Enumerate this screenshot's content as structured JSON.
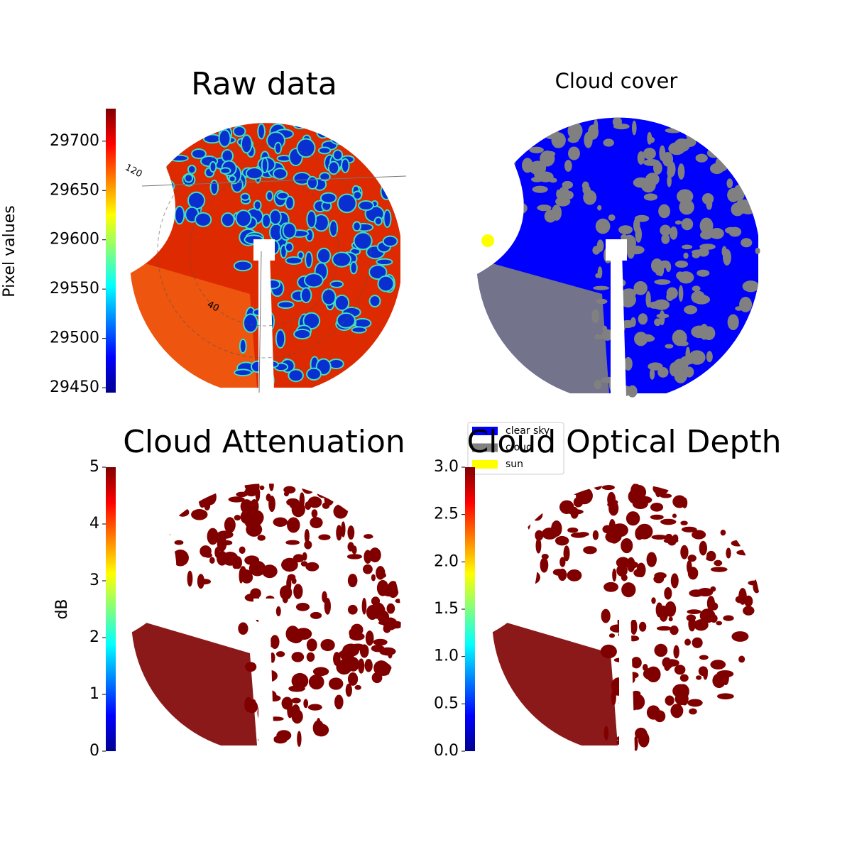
{
  "chart_data": [
    {
      "type": "image",
      "title": "Raw data",
      "colorbar_label": "Pixel values",
      "cmap": "jet",
      "ylim": [
        29445,
        29733
      ],
      "yticks": [
        29450,
        29500,
        29550,
        29600,
        29650,
        29700
      ],
      "annotations": [
        "120",
        "40"
      ]
    },
    {
      "type": "classes",
      "title": "Cloud cover",
      "series": [
        {
          "name": "clear sky",
          "color": "#0000ff"
        },
        {
          "name": "cloud",
          "color": "#808080"
        },
        {
          "name": "sun",
          "color": "#ffff00"
        }
      ]
    },
    {
      "type": "image",
      "title": "Cloud Attenuation",
      "colorbar_label": "dB",
      "cmap": "jet",
      "ylim": [
        0,
        5
      ],
      "yticks": [
        0,
        1,
        2,
        3,
        4,
        5
      ]
    },
    {
      "type": "image",
      "title": "Cloud Optical Depth",
      "cmap": "jet",
      "ylim": [
        0,
        3
      ],
      "yticks": [
        {
          "value": 0,
          "label": "0.0"
        },
        0.5,
        {
          "value": 1,
          "label": "1.0"
        },
        1.5,
        {
          "value": 2,
          "label": "2.0"
        },
        2.5,
        {
          "value": 3,
          "label": "3.0"
        }
      ]
    }
  ]
}
